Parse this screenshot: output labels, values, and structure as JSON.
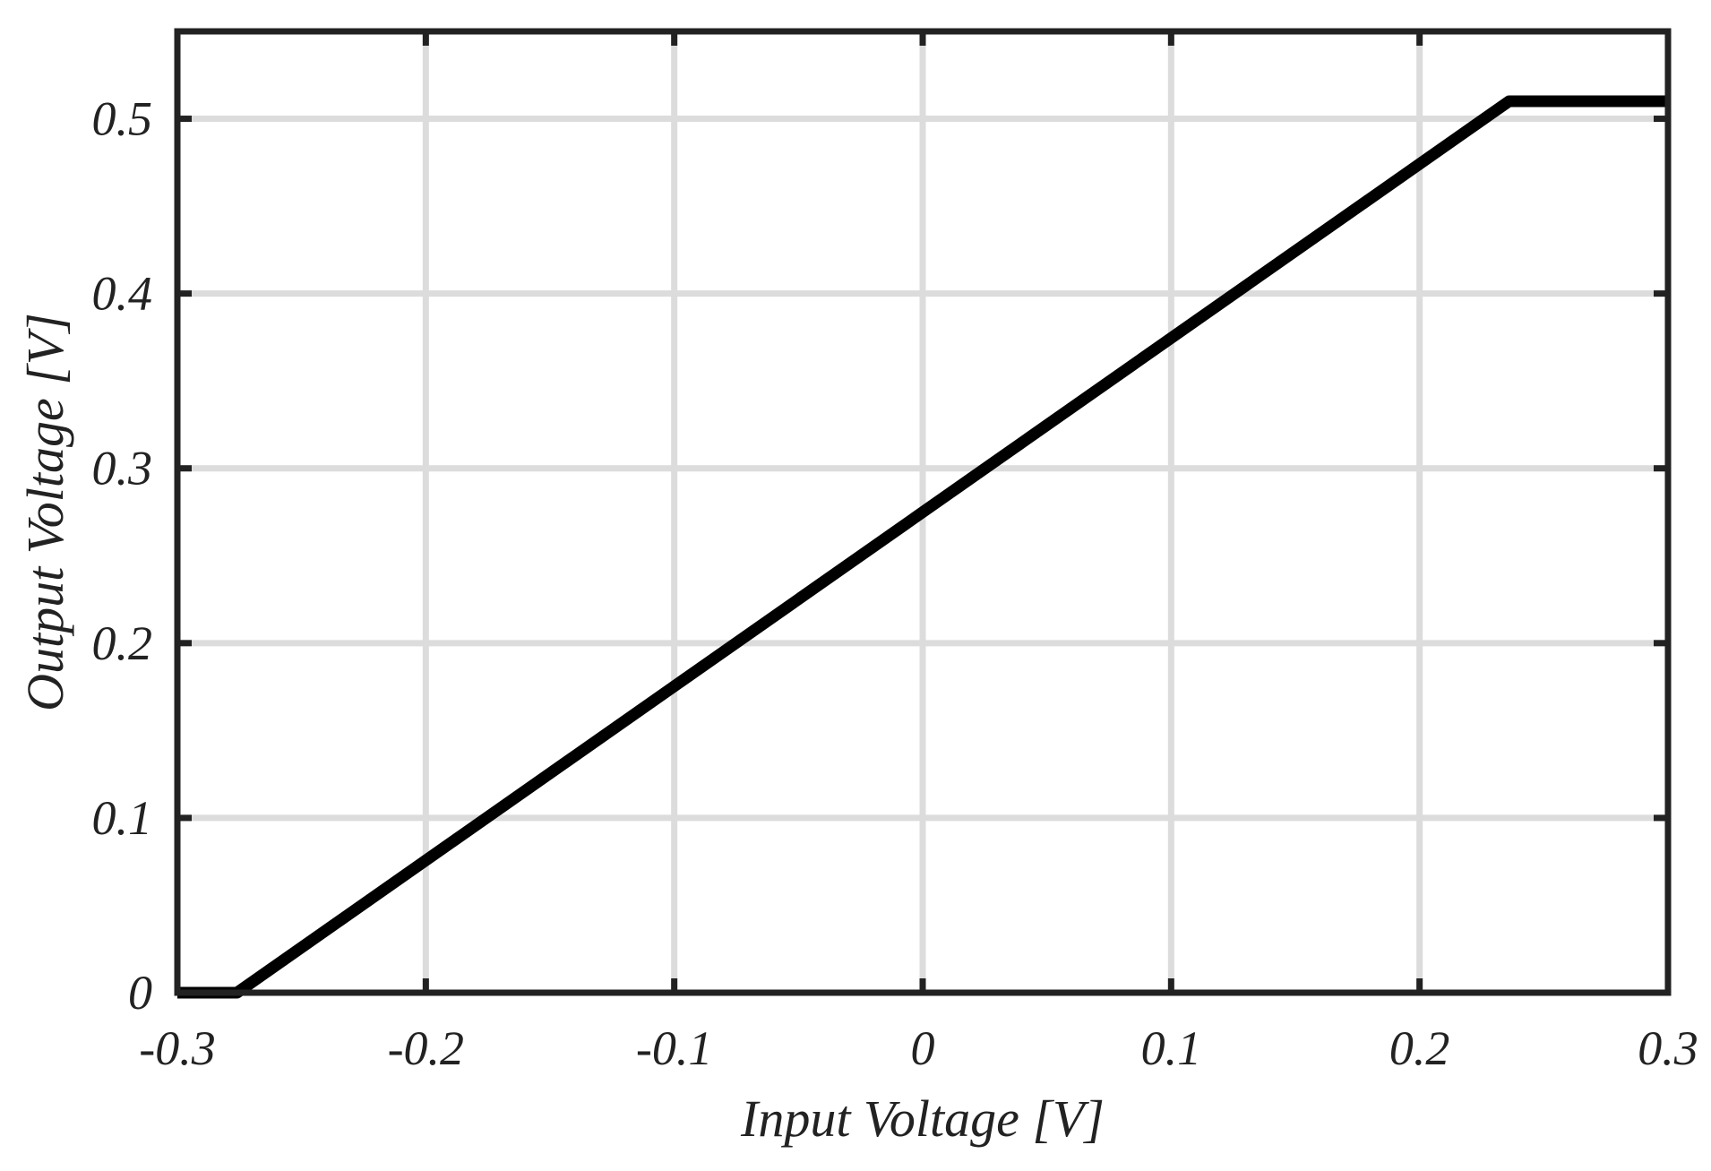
{
  "chart_data": {
    "type": "line",
    "xlabel": "Input Voltage [V]",
    "ylabel": "Output Voltage [V]",
    "xlim": [
      -0.3,
      0.3
    ],
    "ylim": [
      0,
      0.55
    ],
    "xticks": [
      -0.3,
      -0.2,
      -0.1,
      0,
      0.1,
      0.2,
      0.3
    ],
    "xtick_labels": [
      "-0.3",
      "-0.2",
      "-0.1",
      "0",
      "0.1",
      "0.2",
      "0.3"
    ],
    "yticks": [
      0,
      0.1,
      0.2,
      0.3,
      0.4,
      0.5
    ],
    "ytick_labels": [
      "0",
      "0.1",
      "0.2",
      "0.3",
      "0.4",
      "0.5"
    ],
    "grid": true,
    "series": [
      {
        "x": [
          -0.3,
          -0.276,
          0.236,
          0.3
        ],
        "y": [
          0,
          0,
          0.51,
          0.51
        ],
        "color": "#000000"
      }
    ]
  }
}
